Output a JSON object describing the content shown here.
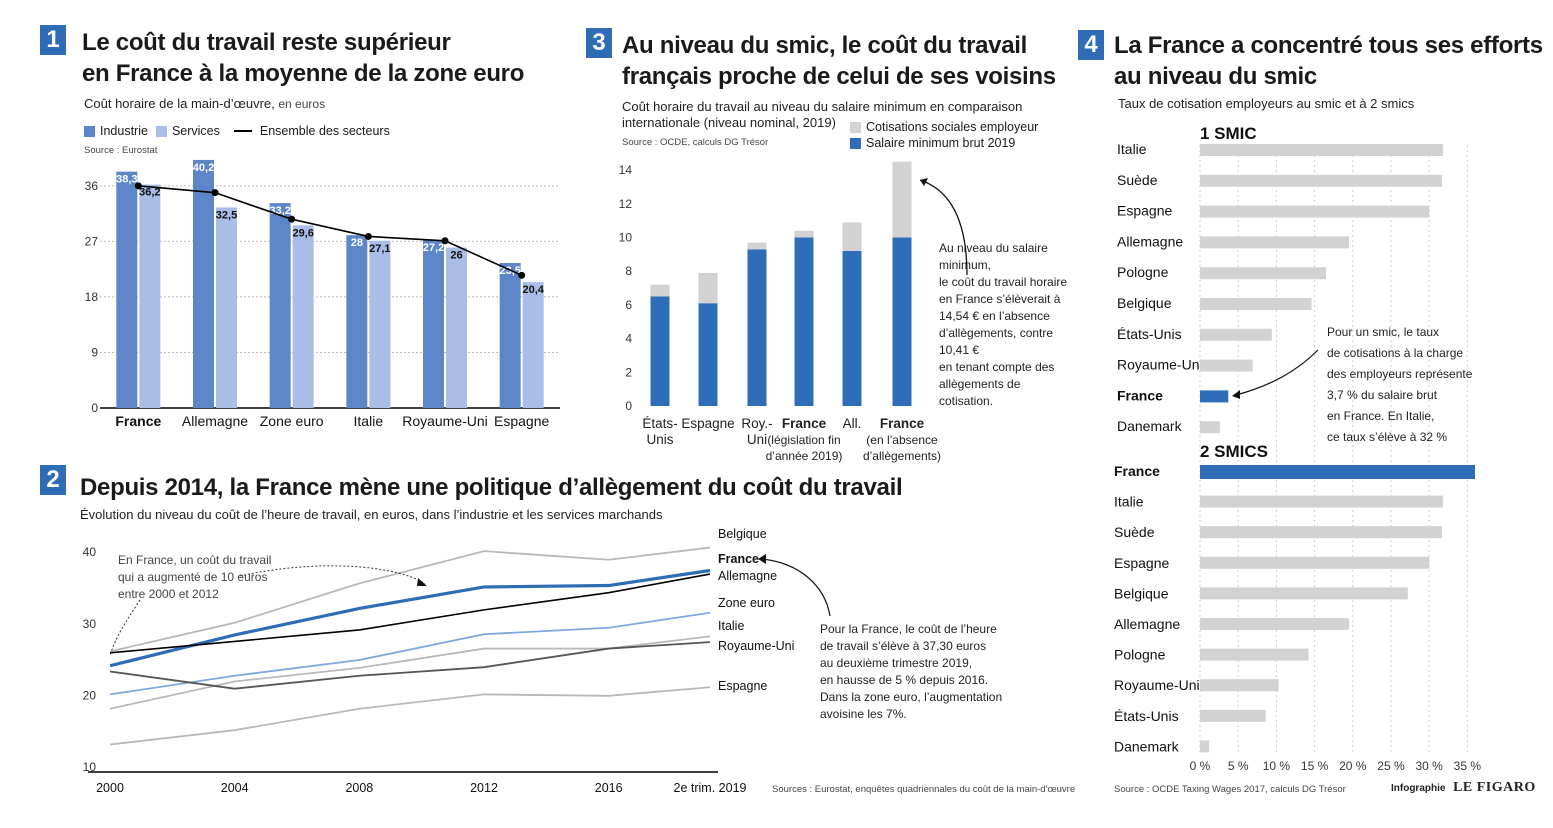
{
  "colors": {
    "accent": "#2e6db5",
    "industrie": "#5c86c8",
    "services": "#a9bde6",
    "gray": "#d2d2d2",
    "blue_bar": "#2f6db8"
  },
  "s1": {
    "num": "1",
    "title1": "Le coût du travail reste supérieur",
    "title2": "en France à la moyenne de la zone euro",
    "subtitle": "Coût horaire de la main-d’œuvre,",
    "subtitle_unit": "en euros",
    "legend": {
      "industrie": "Industrie",
      "services": "Services",
      "ensemble": "Ensemble des secteurs"
    },
    "source": "Source : Eurostat"
  },
  "s2": {
    "num": "2",
    "title": "Depuis 2014, la France mène une politique d’allègement du coût du travail",
    "subtitle": "Évolution du niveau du coût de l’heure de travail, en euros, dans l’industrie et les services marchands",
    "note_left": [
      "En France, un coût du travail",
      "qui a augmenté de 10 euros",
      "entre 2000 et 2012"
    ],
    "note_right": [
      "Pour la France, le coût de l’heure",
      "de travail  s’élève à 37,30 euros",
      "au deuxième trimestre 2019,",
      "en hausse de 5 % depuis 2016.",
      "Dans la zone euro, l’augmentation",
      "avoisine les 7%."
    ],
    "source": "Sources : Eurostat, enquêtes quadriennales du coût de la main-d’œuvre"
  },
  "s3": {
    "num": "3",
    "title1": "Au niveau du smic, le coût du travail",
    "title2": "français proche de celui de ses voisins",
    "subtitle1": "Coût horaire du travail au niveau du salaire minimum en comparaison",
    "subtitle2": "internationale (niveau nominal, 2019)",
    "source": "Source : OCDE, calculs DG Trésor",
    "legend": {
      "cotisations": "Cotisations sociales employeur",
      "salaire": "Salaire minimum brut 2019"
    },
    "note": [
      "Au niveau du salaire",
      "minimum,",
      "le coût du travail horaire",
      "en France s’élèverait à",
      "14,54 € en l’absence",
      "d’allègements, contre",
      "10,41 €",
      "en tenant compte des",
      "allègements de",
      "cotisation."
    ]
  },
  "s4": {
    "num": "4",
    "title1": "La France a concentré tous ses efforts",
    "title2": "au niveau du smic",
    "subtitle": "Taux de cotisation employeurs au smic et à 2 smics",
    "group1": "1 SMIC",
    "group2": "2 SMICS",
    "note": [
      "Pour un smic, le taux",
      "de cotisations à la charge",
      "des employeurs représente",
      "3,7 % du salaire brut",
      "en France. En Italie,",
      "ce taux s’élève  à 32 %"
    ],
    "source": "Source : OCDE Taxing Wages 2017, calculs DG Trésor"
  },
  "credit": {
    "label": "Infographie",
    "brand": "LE FIGARO"
  },
  "chart_data": [
    {
      "type": "bar",
      "title": "Le coût du travail reste supérieur en France à la moyenne de la zone euro",
      "categories": [
        "France",
        "Allemagne",
        "Zone euro",
        "Italie",
        "Royaume-Uni",
        "Espagne"
      ],
      "series": [
        {
          "name": "Industrie",
          "values": [
            38.3,
            40.2,
            33.2,
            28,
            27.2,
            23.5
          ],
          "labels": [
            "38,3",
            "40,2",
            "33,2",
            "28",
            "27,2",
            "23,5"
          ]
        },
        {
          "name": "Services",
          "values": [
            36.2,
            32.5,
            29.6,
            27.1,
            26,
            20.4
          ],
          "labels": [
            "36,2",
            "32,5",
            "29,6",
            "27,1",
            "26",
            "20,4"
          ]
        },
        {
          "name": "Ensemble des secteurs",
          "type": "line",
          "values": [
            36,
            34.9,
            30.6,
            27.8,
            27.1,
            21.5
          ]
        }
      ],
      "yticks": [
        0,
        9,
        18,
        27,
        36
      ],
      "ylim": [
        0,
        41
      ]
    },
    {
      "type": "line",
      "x": [
        "2000",
        "2004",
        "2008",
        "2012",
        "2016",
        "2e trim. 2019"
      ],
      "x_pos": [
        2000,
        2004,
        2008,
        2012,
        2016,
        2019.25
      ],
      "series": [
        {
          "name": "Belgique",
          "values": [
            26,
            30,
            35.5,
            40,
            38.8,
            40.5
          ]
        },
        {
          "name": "France",
          "values": [
            24,
            28.3,
            32,
            35,
            35.2,
            37.3
          ]
        },
        {
          "name": "Allemagne",
          "values": [
            25.8,
            27.4,
            29,
            31.8,
            34.2,
            36.8
          ]
        },
        {
          "name": "Zone euro",
          "values": [
            20,
            22.6,
            24.8,
            28.4,
            29.3,
            31.4
          ]
        },
        {
          "name": "Italie",
          "values": [
            18,
            21.8,
            23.7,
            26.4,
            26.4,
            28.1
          ]
        },
        {
          "name": "Royaume-Uni",
          "values": [
            23.2,
            20.8,
            22.6,
            23.8,
            26.4,
            27.3
          ]
        },
        {
          "name": "Espagne",
          "values": [
            13,
            15,
            18,
            20,
            19.8,
            21
          ]
        }
      ],
      "yticks": [
        10,
        20,
        30,
        40
      ],
      "ylim": [
        10,
        41
      ]
    },
    {
      "type": "bar",
      "stacked": true,
      "categories": [
        [
          "États-",
          "Unis"
        ],
        [
          "Espagne"
        ],
        [
          "Roy.-",
          "Uni"
        ],
        [
          "France",
          "(législation fin",
          "d’année 2019)"
        ],
        [
          "All."
        ],
        [
          "France",
          "(en l’absence",
          "d’allègements)"
        ]
      ],
      "series": [
        {
          "name": "Salaire minimum brut 2019",
          "values": [
            6.5,
            6.1,
            9.3,
            10.0,
            9.2,
            10.0
          ]
        },
        {
          "name": "Cotisations sociales employeur",
          "values": [
            0.7,
            1.8,
            0.4,
            0.4,
            1.7,
            4.5
          ]
        }
      ],
      "yticks": [
        0,
        2,
        4,
        6,
        8,
        10,
        12,
        14
      ],
      "ylim": [
        0,
        14.6
      ]
    },
    {
      "type": "bar",
      "orientation": "horizontal",
      "groups": [
        {
          "name": "1 SMIC",
          "categories": [
            "Italie",
            "Suède",
            "Espagne",
            "Allemagne",
            "Pologne",
            "Belgique",
            "États-Unis",
            "Royaume-Uni",
            "France",
            "Danemark"
          ],
          "values": [
            31.8,
            31.7,
            30.0,
            19.5,
            16.5,
            14.6,
            9.4,
            6.9,
            3.7,
            2.6
          ]
        },
        {
          "name": "2 SMICS",
          "categories": [
            "France",
            "Italie",
            "Suède",
            "Espagne",
            "Belgique",
            "Allemagne",
            "Pologne",
            "Royaume-Uni",
            "États-Unis",
            "Danemark"
          ],
          "values": [
            36.0,
            31.8,
            31.7,
            30.0,
            27.2,
            19.5,
            14.2,
            10.3,
            8.6,
            1.2
          ]
        }
      ],
      "xticks": [
        0,
        5,
        10,
        15,
        20,
        25,
        30,
        35
      ],
      "xtick_labels": [
        "0 %",
        "5 %",
        "10 %",
        "15 %",
        "20 %",
        "25 %",
        "30 %",
        "35 %"
      ],
      "xlim": [
        0,
        36
      ]
    }
  ]
}
